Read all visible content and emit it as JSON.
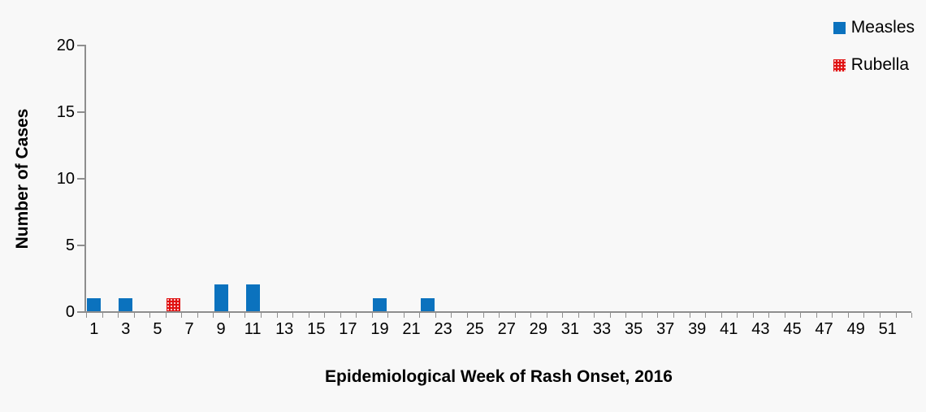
{
  "chart_data": {
    "type": "bar",
    "title": "",
    "xlabel": "Epidemiological Week of Rash Onset, 2016",
    "ylabel": "Number of Cases",
    "x_axis": {
      "min_week": 1,
      "max_week": 52,
      "tick_labels": [
        "1",
        "3",
        "5",
        "7",
        "9",
        "11",
        "13",
        "15",
        "17",
        "19",
        "21",
        "23",
        "25",
        "27",
        "29",
        "31",
        "33",
        "35",
        "37",
        "39",
        "41",
        "43",
        "45",
        "47",
        "49",
        "51"
      ]
    },
    "ylim": [
      0,
      20
    ],
    "y_ticks": [
      0,
      5,
      10,
      15,
      20
    ],
    "grid": false,
    "legend_position": "top-right",
    "series": [
      {
        "name": "Measles",
        "color": "#0B72BE",
        "fill_pattern": "solid",
        "points": [
          {
            "week": 1,
            "cases": 1
          },
          {
            "week": 3,
            "cases": 1
          },
          {
            "week": 9,
            "cases": 2
          },
          {
            "week": 11,
            "cases": 2
          },
          {
            "week": 19,
            "cases": 1
          },
          {
            "week": 22,
            "cases": 1
          }
        ]
      },
      {
        "name": "Rubella",
        "color": "#E01212",
        "fill_pattern": "dotted",
        "points": [
          {
            "week": 6,
            "cases": 1
          }
        ]
      }
    ]
  },
  "colors": {
    "background": "#F8F8F8",
    "axis": "#8E8E8E",
    "text": "#000000"
  }
}
